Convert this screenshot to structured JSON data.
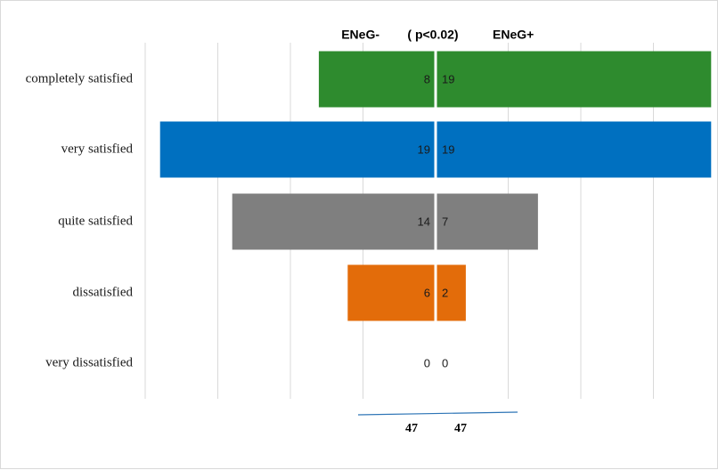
{
  "chart_data": {
    "type": "bar",
    "orientation": "horizontal-diverging",
    "title": "",
    "header": {
      "left": "ENeG-",
      "center": "( p<0.02)",
      "right": "ENeG+"
    },
    "categories": [
      "completely satisfied",
      "very satisfied",
      "quite satisfied",
      "dissatisfied",
      "very dissatisfied"
    ],
    "series": [
      {
        "name": "ENeG-",
        "values": [
          8,
          19,
          14,
          6,
          0
        ]
      },
      {
        "name": "ENeG+",
        "values": [
          19,
          19,
          7,
          2,
          0
        ]
      }
    ],
    "category_colors": [
      "#2e8b2e",
      "#0070c0",
      "#7f7f7f",
      "#e36c0a",
      "#ffffff"
    ],
    "totals": {
      "left": "47",
      "right": "47"
    },
    "xlim": [
      -19,
      19
    ],
    "grid": true,
    "legend": "none"
  }
}
